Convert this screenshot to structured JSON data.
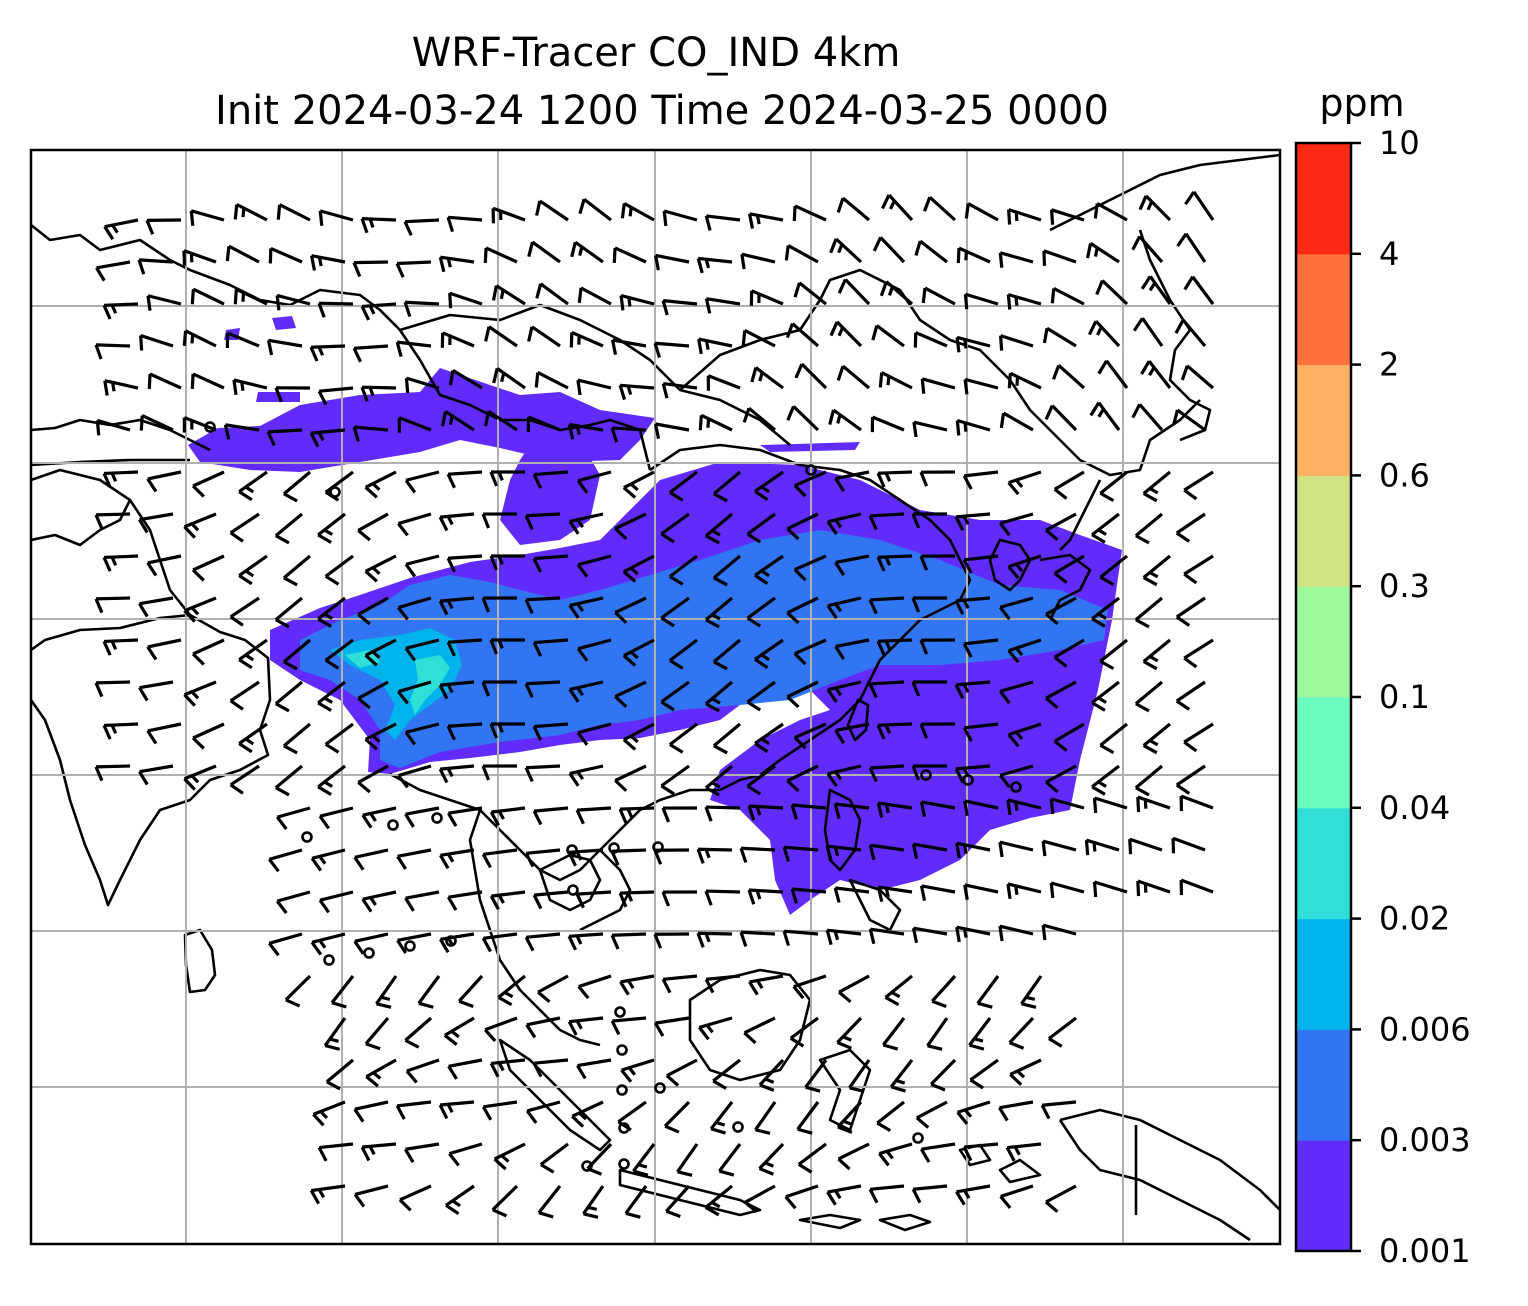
{
  "title": {
    "line1": "WRF-Tracer CO_IND 4km",
    "line2": "Init 2024-03-24 1200 Time 2024-03-25 0000"
  },
  "colorbar": {
    "unit": "ppm",
    "levels": [
      "0.001",
      "0.003",
      "0.006",
      "0.02",
      "0.04",
      "0.1",
      "0.3",
      "0.6",
      "2",
      "4",
      "10"
    ],
    "colors": [
      "#612cfa",
      "#3275f2",
      "#01b3ec",
      "#2fdfd8",
      "#6afcbf",
      "#9cf89a",
      "#d0e384",
      "#fdb163",
      "#fe713c",
      "#fe2a16"
    ]
  },
  "chart_data": {
    "type": "heatmap",
    "variable": "CO_IND",
    "unit": "ppm",
    "overlay": "wind barbs",
    "gridlines": true
  }
}
